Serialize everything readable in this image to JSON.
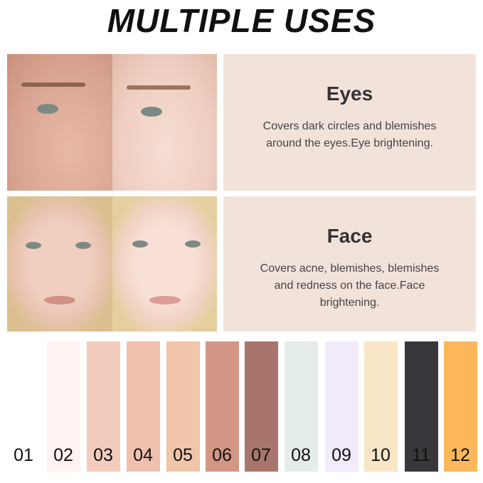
{
  "title": "MULTIPLE USES",
  "sections": [
    {
      "heading": "Eyes",
      "lines": [
        "Covers dark circles and blemishes",
        "around the eyes.Eye brightening."
      ]
    },
    {
      "heading": "Face",
      "lines": [
        "Covers acne, blemishes, blemishes",
        "and redness on the face.Face",
        "brightening."
      ]
    }
  ],
  "panel_color": "#f2e3da",
  "swatches": [
    {
      "label": "01",
      "color": "#ffffff"
    },
    {
      "label": "02",
      "color": "#fff3f1"
    },
    {
      "label": "03",
      "color": "#f3cbbd"
    },
    {
      "label": "04",
      "color": "#efc1ad"
    },
    {
      "label": "05",
      "color": "#f0c5aa"
    },
    {
      "label": "06",
      "color": "#d29684"
    },
    {
      "label": "07",
      "color": "#a8756c"
    },
    {
      "label": "08",
      "color": "#e4ede8"
    },
    {
      "label": "09",
      "color": "#f3eafa"
    },
    {
      "label": "10",
      "color": "#f8e6c6"
    },
    {
      "label": "11",
      "color": "#38373b"
    },
    {
      "label": "12",
      "color": "#fbb75a"
    }
  ]
}
